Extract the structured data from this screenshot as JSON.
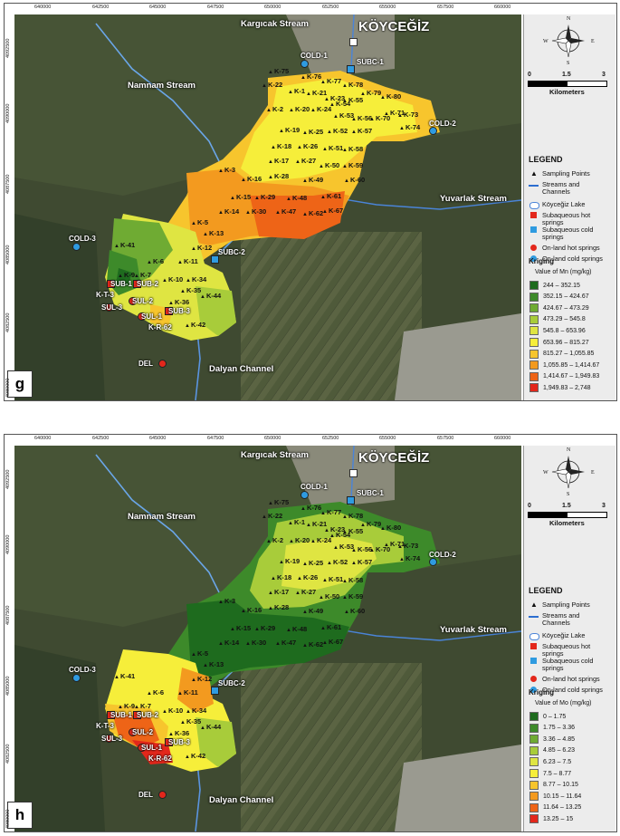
{
  "x_ticks": [
    "640000",
    "642500",
    "645000",
    "647500",
    "650000",
    "652500",
    "655000",
    "657500",
    "660000"
  ],
  "y_ticks_g": [
    "4092500",
    "4090000",
    "4087500",
    "4085000",
    "4082500",
    "4080000"
  ],
  "y_ticks_h": [
    "4092500",
    "4090000",
    "4087500",
    "4085000",
    "4082500",
    "4080000"
  ],
  "place_labels": {
    "kargicak": "Kargıcak Stream",
    "koycegiz": "KÖYCEĞİZ",
    "namnam": "Namnam Stream",
    "yuvarlak": "Yuvarlak Stream",
    "dalyan": "Dalyan Channel"
  },
  "spring_labels": {
    "cold1": "COLD-1",
    "subc1": "SUBC-1",
    "cold2": "COLD-2",
    "cold3": "COLD-3",
    "subc2": "SUBC-2",
    "del": "DEL",
    "sub1": "SUB-1",
    "sub2": "SUB-2",
    "sub3": "SUB-3",
    "sul1": "SUL-1",
    "sul2": "SUL-2",
    "sul3": "SUL-3",
    "kt3": "K-T-3",
    "kr62": "K-R-62"
  },
  "samples": [
    {
      "id": "K-75"
    },
    {
      "id": "K-76"
    },
    {
      "id": "K-77"
    },
    {
      "id": "K-78"
    },
    {
      "id": "K-22"
    },
    {
      "id": "K-1"
    },
    {
      "id": "K-21"
    },
    {
      "id": "K-23"
    },
    {
      "id": "K-79"
    },
    {
      "id": "K-80"
    },
    {
      "id": "K-55"
    },
    {
      "id": "K-54"
    },
    {
      "id": "K-2"
    },
    {
      "id": "K-20"
    },
    {
      "id": "K-24"
    },
    {
      "id": "K-53"
    },
    {
      "id": "K-56"
    },
    {
      "id": "K-70"
    },
    {
      "id": "K-71"
    },
    {
      "id": "K-73"
    },
    {
      "id": "K-74"
    },
    {
      "id": "K-19"
    },
    {
      "id": "K-25"
    },
    {
      "id": "K-52"
    },
    {
      "id": "K-57"
    },
    {
      "id": "K-18"
    },
    {
      "id": "K-26"
    },
    {
      "id": "K-51"
    },
    {
      "id": "K-58"
    },
    {
      "id": "K-17"
    },
    {
      "id": "K-27"
    },
    {
      "id": "K-50"
    },
    {
      "id": "K-59"
    },
    {
      "id": "K-3"
    },
    {
      "id": "K-16"
    },
    {
      "id": "K-28"
    },
    {
      "id": "K-49"
    },
    {
      "id": "K-60"
    },
    {
      "id": "K-15"
    },
    {
      "id": "K-29"
    },
    {
      "id": "K-48"
    },
    {
      "id": "K-61"
    },
    {
      "id": "K-14"
    },
    {
      "id": "K-30"
    },
    {
      "id": "K-47"
    },
    {
      "id": "K-62"
    },
    {
      "id": "K-67"
    },
    {
      "id": "K-5"
    },
    {
      "id": "K-13"
    },
    {
      "id": "K-12"
    },
    {
      "id": "K-41"
    },
    {
      "id": "K-6"
    },
    {
      "id": "K-11"
    },
    {
      "id": "K-9"
    },
    {
      "id": "K-7"
    },
    {
      "id": "K-10"
    },
    {
      "id": "K-34"
    },
    {
      "id": "K-35"
    },
    {
      "id": "K-36"
    },
    {
      "id": "K-44"
    },
    {
      "id": "K-42"
    }
  ],
  "legend": {
    "title": "LEGEND",
    "items": [
      {
        "label": "Sampling Points",
        "symbol": "triangle-icon"
      },
      {
        "label": "Streams and Channels",
        "symbol": "line-icon"
      },
      {
        "label": "Köyceğiz Lake",
        "symbol": "lake-icon"
      },
      {
        "label": "Subaqueous hot springs",
        "symbol": "red-square-icon"
      },
      {
        "label": "Subaqueous cold springs",
        "symbol": "blue-square-icon"
      },
      {
        "label": "On-land hot springs",
        "symbol": "red-circle-icon"
      },
      {
        "label": "On-land cold springs",
        "symbol": "blue-circle-icon"
      }
    ],
    "scale": {
      "n0": "0",
      "n1": "1.5",
      "n2": "3",
      "unit": "Kilometers"
    },
    "compass": {
      "n": "N",
      "s": "S",
      "e": "E",
      "w": "W"
    }
  },
  "panel_g": {
    "letter": "g",
    "kriging_title": "Kriging",
    "kriging_sub": "Value of Mn (mg/kg)",
    "classes": [
      {
        "range": "244 – 352.15",
        "color": "#1e6b1e"
      },
      {
        "range": "352.15 – 424.67",
        "color": "#3d8a2a"
      },
      {
        "range": "424.67 – 473.29",
        "color": "#6fab33"
      },
      {
        "range": "473.29 – 545.8",
        "color": "#a8cc3a"
      },
      {
        "range": "545.8 – 653.96",
        "color": "#dfe542"
      },
      {
        "range": "653.96 – 815.27",
        "color": "#f6ee3a"
      },
      {
        "range": "815.27 – 1,055.85",
        "color": "#f7c52d"
      },
      {
        "range": "1,055.85 – 1,414.67",
        "color": "#f39a1f"
      },
      {
        "range": "1,414.67 – 1,949.83",
        "color": "#ee6417"
      },
      {
        "range": "1,949.83 – 2,748",
        "color": "#e3271b"
      }
    ]
  },
  "panel_h": {
    "letter": "h",
    "kriging_title": "Kriging",
    "kriging_sub": "Value of Mo (mg/kg)",
    "classes": [
      {
        "range": "0 – 1.75",
        "color": "#1e6b1e"
      },
      {
        "range": "1.75 – 3.36",
        "color": "#3d8a2a"
      },
      {
        "range": "3.36 – 4.85",
        "color": "#6fab33"
      },
      {
        "range": "4.85 – 6.23",
        "color": "#a8cc3a"
      },
      {
        "range": "6.23 – 7.5",
        "color": "#dfe542"
      },
      {
        "range": "7.5 – 8.77",
        "color": "#f6ee3a"
      },
      {
        "range": "8.77 – 10.15",
        "color": "#f7c52d"
      },
      {
        "range": "10.15 – 11.64",
        "color": "#f39a1f"
      },
      {
        "range": "11.64 – 13.25",
        "color": "#ee6417"
      },
      {
        "range": "13.25 – 15",
        "color": "#e3271b"
      }
    ]
  }
}
